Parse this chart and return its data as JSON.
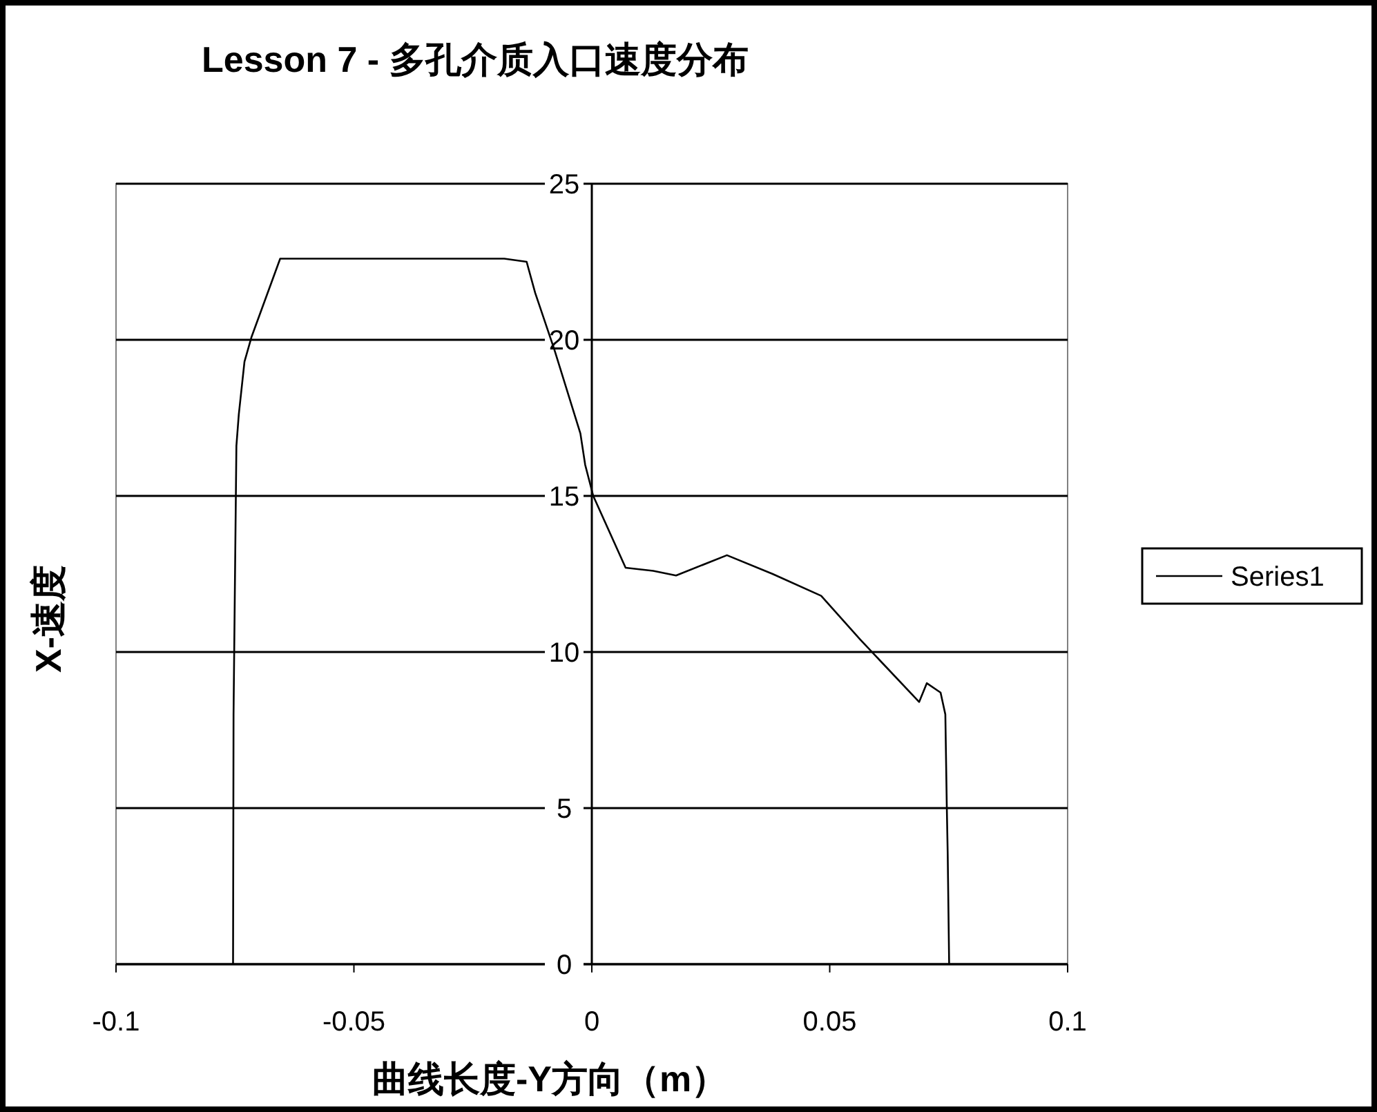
{
  "chart_data": {
    "type": "line",
    "title": "Lesson 7 - 多孔介质入口速度分布",
    "xlabel": "曲线长度-Y方向（m）",
    "ylabel": "X-速度",
    "series": [
      {
        "name": "Series1",
        "color": "#000000",
        "x": [
          -0.0754,
          -0.0753,
          -0.0747,
          -0.0742,
          -0.073,
          -0.0715,
          -0.0655,
          -0.0184,
          -0.0137,
          -0.0119,
          -0.0079,
          -0.0024,
          -0.0014,
          0.0003,
          0.0071,
          0.0129,
          0.0177,
          0.0284,
          0.038,
          0.0482,
          0.0564,
          0.0688,
          0.0704,
          0.0733,
          0.0743,
          0.0746,
          0.0748,
          0.0751
        ],
        "values": [
          0,
          8.0,
          16.6,
          17.6,
          19.3,
          20.1,
          22.6,
          22.6,
          22.5,
          21.5,
          19.7,
          17.0,
          16.0,
          15.0,
          12.7,
          12.6,
          12.45,
          13.1,
          12.5,
          11.8,
          10.4,
          8.4,
          9.0,
          8.7,
          8.0,
          5.1,
          3.5,
          0
        ]
      }
    ],
    "xlim": [
      -0.1,
      0.1
    ],
    "xticks": [
      -0.1,
      -0.05,
      0,
      0.05,
      0.1
    ],
    "ylim": [
      0,
      25
    ],
    "yticks": [
      0,
      5,
      10,
      15,
      20,
      25
    ],
    "grid": "y",
    "legend": "right",
    "marker": "none",
    "line_style": "solid"
  }
}
